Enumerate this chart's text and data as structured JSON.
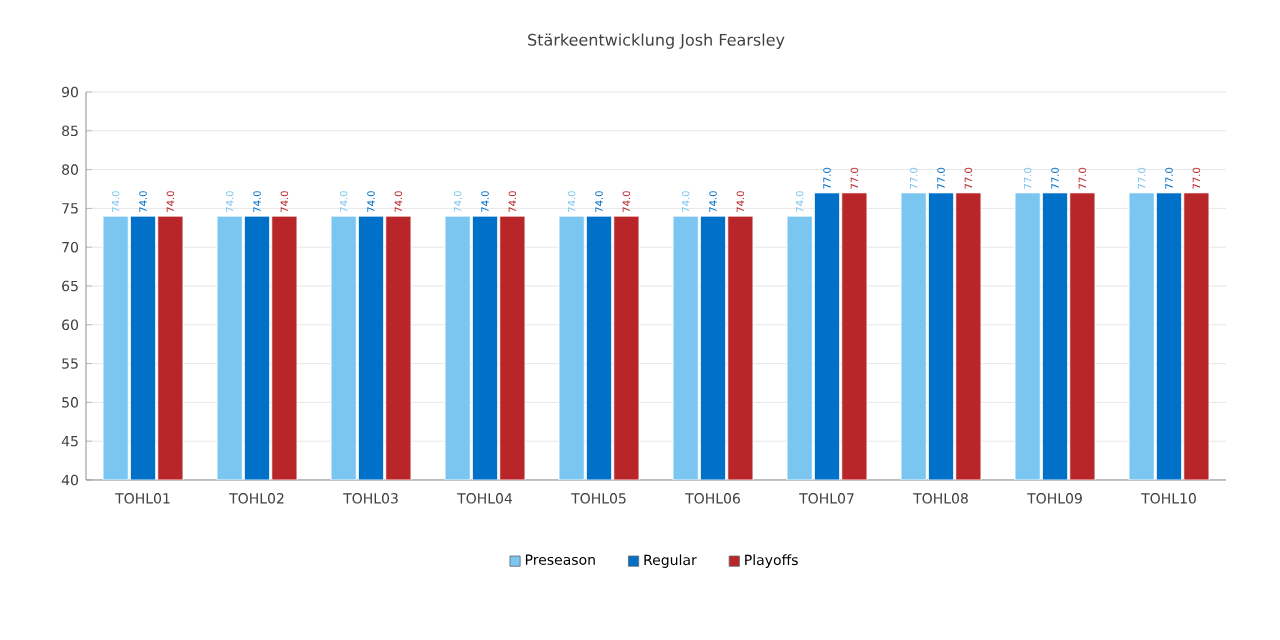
{
  "chart_data": {
    "type": "bar",
    "title": "Stärkeentwicklung Josh Fearsley",
    "categories": [
      "TOHL01",
      "TOHL02",
      "TOHL03",
      "TOHL04",
      "TOHL05",
      "TOHL06",
      "TOHL07",
      "TOHL08",
      "TOHL09",
      "TOHL10"
    ],
    "series": [
      {
        "name": "Preseason",
        "color": "#7bc6f0",
        "values": [
          74,
          74,
          74,
          74,
          74,
          74,
          74,
          77,
          77,
          77
        ],
        "value_labels": [
          "74.0",
          "74.0",
          "74.0",
          "74.0",
          "74.0",
          "74.0",
          "74.0",
          "77.0",
          "77.0",
          "77.0"
        ]
      },
      {
        "name": "Regular",
        "color": "#0070c8",
        "values": [
          74,
          74,
          74,
          74,
          74,
          74,
          77,
          77,
          77,
          77
        ],
        "value_labels": [
          "74.0",
          "74.0",
          "74.0",
          "74.0",
          "74.0",
          "74.0",
          "77.0",
          "77.0",
          "77.0",
          "77.0"
        ]
      },
      {
        "name": "Playoffs",
        "color": "#b8262a",
        "values": [
          74,
          74,
          74,
          74,
          74,
          74,
          77,
          77,
          77,
          77
        ],
        "value_labels": [
          "74.0",
          "74.0",
          "74.0",
          "74.0",
          "74.0",
          "74.0",
          "77.0",
          "77.0",
          "77.0",
          "77.0"
        ]
      }
    ],
    "ylim": [
      40,
      90
    ],
    "yticks": [
      40,
      45,
      50,
      55,
      60,
      65,
      70,
      75,
      80,
      85,
      90
    ],
    "grid": "y",
    "legend": "bottom"
  }
}
